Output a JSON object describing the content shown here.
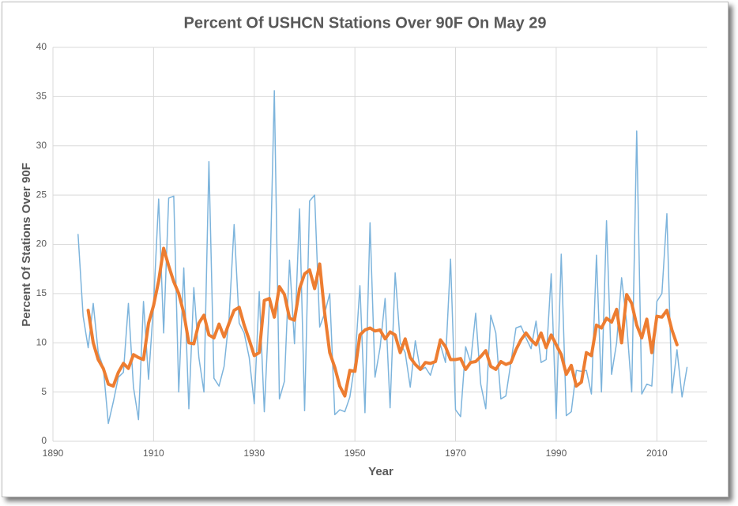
{
  "chart_data": {
    "type": "line",
    "title": "Percent Of USHCN Stations Over 90F On May 29",
    "xlabel": "Year",
    "ylabel": "Percent Of Stations Over 90F",
    "xlim": [
      1890,
      2020
    ],
    "xticks": [
      1890,
      1910,
      1930,
      1950,
      1970,
      1990,
      2010
    ],
    "ylim": [
      0,
      40
    ],
    "yticks": [
      0,
      5,
      10,
      15,
      20,
      25,
      30,
      35,
      40
    ],
    "grid": true,
    "series": [
      {
        "color": "#7db4dc",
        "width": 1.5,
        "x": [
          1895,
          1896,
          1897,
          1898,
          1899,
          1900,
          1901,
          1902,
          1903,
          1904,
          1905,
          1906,
          1907,
          1908,
          1909,
          1910,
          1911,
          1912,
          1913,
          1914,
          1915,
          1916,
          1917,
          1918,
          1919,
          1920,
          1921,
          1922,
          1923,
          1924,
          1925,
          1926,
          1927,
          1928,
          1929,
          1930,
          1931,
          1932,
          1933,
          1934,
          1935,
          1936,
          1937,
          1938,
          1939,
          1940,
          1941,
          1942,
          1943,
          1944,
          1945,
          1946,
          1947,
          1948,
          1949,
          1950,
          1951,
          1952,
          1953,
          1954,
          1955,
          1956,
          1957,
          1958,
          1959,
          1960,
          1961,
          1962,
          1963,
          1964,
          1965,
          1966,
          1967,
          1968,
          1969,
          1970,
          1971,
          1972,
          1973,
          1974,
          1975,
          1976,
          1977,
          1978,
          1979,
          1980,
          1981,
          1982,
          1983,
          1984,
          1985,
          1986,
          1987,
          1988,
          1989,
          1990,
          1991,
          1992,
          1993,
          1994,
          1995,
          1996,
          1997,
          1998,
          1999,
          2000,
          2001,
          2002,
          2003,
          2004,
          2005,
          2006,
          2007,
          2008,
          2009,
          2010,
          2011,
          2012,
          2013,
          2014,
          2015,
          2016
        ],
        "values": [
          21,
          12.7,
          9.5,
          14,
          9,
          7.5,
          1.8,
          4,
          6.5,
          7,
          14,
          5.5,
          2.2,
          14.2,
          6.3,
          14,
          24.6,
          11,
          24.7,
          24.9,
          5,
          17.6,
          3.3,
          15.6,
          8.5,
          5,
          28.4,
          6.4,
          5.6,
          7.6,
          12.5,
          22,
          12,
          11,
          8.5,
          3.8,
          15.2,
          3,
          14,
          35.6,
          4.3,
          6.1,
          18.4,
          9.9,
          23.6,
          3.1,
          24.4,
          25,
          11.6,
          13,
          15,
          2.7,
          3.2,
          3,
          4.5,
          8,
          15.8,
          2.9,
          22.2,
          6.5,
          9.5,
          14.5,
          3.4,
          17.1,
          10,
          9,
          5.5,
          10.2,
          7.2,
          7.5,
          6.7,
          8.5,
          9.8,
          8,
          18.5,
          3.2,
          2.5,
          9.6,
          8,
          13,
          5.8,
          3.3,
          12.8,
          11,
          4.3,
          4.6,
          8,
          11.5,
          11.7,
          10.5,
          9.4,
          12.2,
          8,
          8.3,
          17,
          2.3,
          19,
          2.6,
          3,
          7.2,
          7.1,
          7.2,
          4.8,
          18.9,
          5,
          22.4,
          6.8,
          10,
          16.6,
          12,
          5,
          31.5,
          4.8,
          5.8,
          5.6,
          14.2,
          15,
          23.1,
          4.9,
          9.3,
          4.5,
          7.5
        ]
      },
      {
        "color": "#ed7d31",
        "width": 4,
        "x": [
          1897,
          1898,
          1899,
          1900,
          1901,
          1902,
          1903,
          1904,
          1905,
          1906,
          1907,
          1908,
          1909,
          1910,
          1911,
          1912,
          1913,
          1914,
          1915,
          1916,
          1917,
          1918,
          1919,
          1920,
          1921,
          1922,
          1923,
          1924,
          1925,
          1926,
          1927,
          1928,
          1929,
          1930,
          1931,
          1932,
          1933,
          1934,
          1935,
          1936,
          1937,
          1938,
          1939,
          1940,
          1941,
          1942,
          1943,
          1944,
          1945,
          1946,
          1947,
          1948,
          1949,
          1950,
          1951,
          1952,
          1953,
          1954,
          1955,
          1956,
          1957,
          1958,
          1959,
          1960,
          1961,
          1962,
          1963,
          1964,
          1965,
          1966,
          1967,
          1968,
          1969,
          1970,
          1971,
          1972,
          1973,
          1974,
          1975,
          1976,
          1977,
          1978,
          1979,
          1980,
          1981,
          1982,
          1983,
          1984,
          1985,
          1986,
          1987,
          1988,
          1989,
          1990,
          1991,
          1992,
          1993,
          1994,
          1995,
          1996,
          1997,
          1998,
          1999,
          2000,
          2001,
          2002,
          2003,
          2004,
          2005,
          2006,
          2007,
          2008,
          2009,
          2010,
          2011,
          2012,
          2013,
          2014
        ],
        "values": [
          13.3,
          10,
          8.3,
          7.4,
          5.8,
          5.6,
          7,
          7.9,
          7.4,
          8.8,
          8.5,
          8.3,
          12,
          13.8,
          16.3,
          19.6,
          17.8,
          16.2,
          15,
          13,
          10,
          9.9,
          12,
          12.8,
          10.8,
          10.5,
          11.9,
          10.6,
          12,
          13.3,
          13.6,
          11.8,
          10.3,
          8.7,
          9,
          14.3,
          14.5,
          12.6,
          15.7,
          14.9,
          12.5,
          12.3,
          15.5,
          17,
          17.4,
          15.5,
          18,
          13,
          9,
          7.5,
          5.6,
          4.6,
          7.2,
          7.1,
          10.8,
          11.3,
          11.5,
          11.2,
          11.3,
          10.4,
          11.1,
          10.8,
          9,
          10.4,
          8.5,
          7.8,
          7.3,
          8,
          7.9,
          8.1,
          10.3,
          9.6,
          8.3,
          8.3,
          8.4,
          7.3,
          8,
          8.1,
          8.6,
          9.2,
          7.6,
          7.3,
          8.1,
          7.8,
          8,
          9.3,
          10.3,
          11,
          10.3,
          9.8,
          11,
          9.5,
          10.8,
          9.8,
          8.8,
          6.8,
          7.7,
          5.6,
          6,
          9,
          8.7,
          11.8,
          11.5,
          12.5,
          12.1,
          13.4,
          10,
          14.9,
          14,
          11.8,
          10.5,
          12.4,
          9,
          12.7,
          12.6,
          13.3,
          11.3,
          9.8
        ]
      }
    ]
  }
}
